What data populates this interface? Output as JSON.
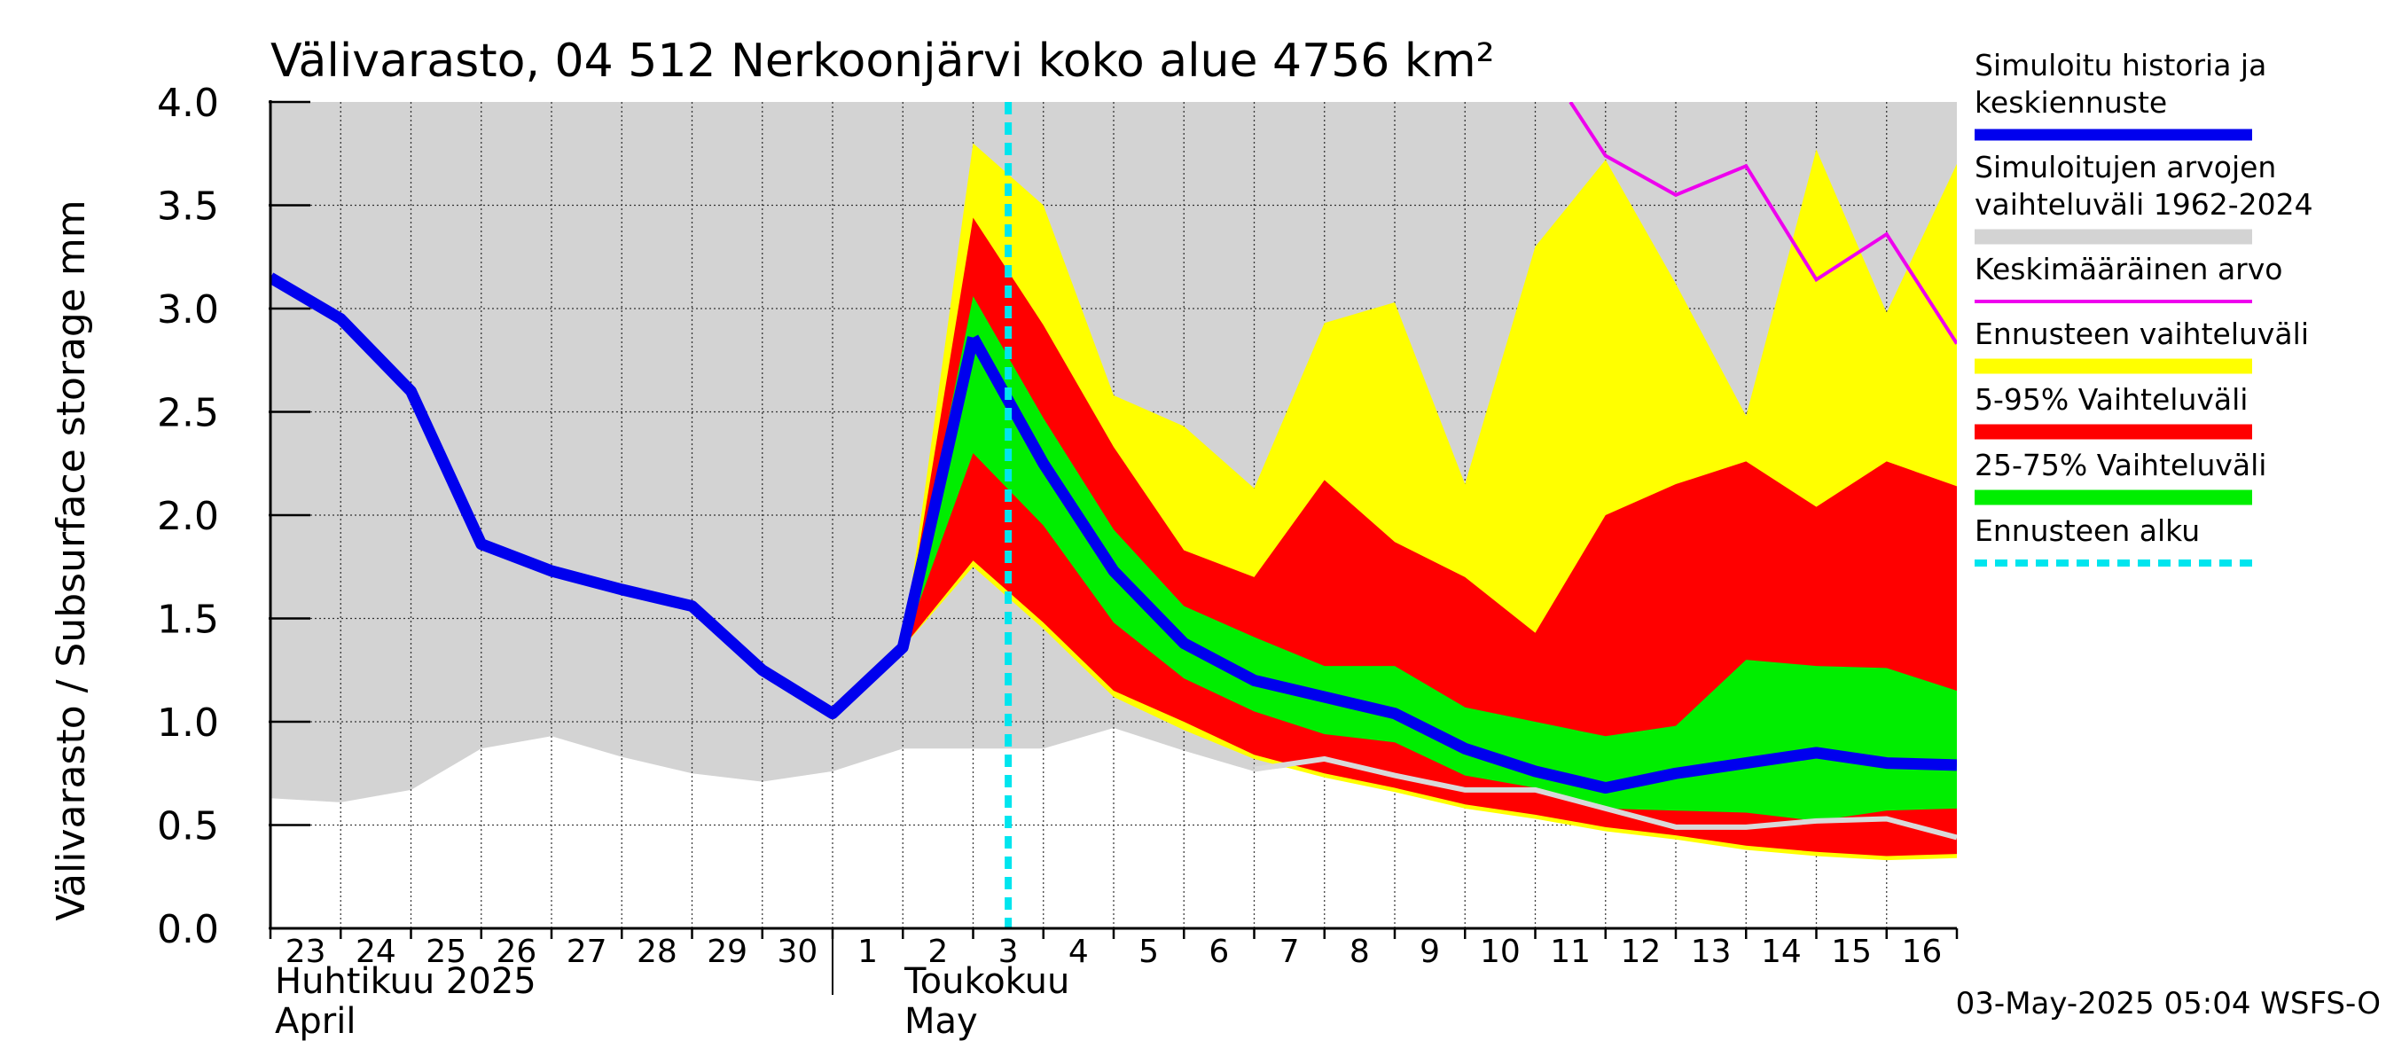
{
  "chart_data": {
    "type": "area",
    "title": "Välivarasto, 04 512 Nerkoonjärvi koko alue 4756 km²",
    "ylabel": "Välivarasto / Subsurface storage  mm",
    "ylim": [
      0,
      4
    ],
    "yticks": [
      "0.0",
      "0.5",
      "1.0",
      "1.5",
      "2.0",
      "2.5",
      "3.0",
      "3.5",
      "4.0"
    ],
    "x_day_labels": [
      "23",
      "24",
      "25",
      "26",
      "27",
      "28",
      "29",
      "30",
      "1",
      "2",
      "3",
      "4",
      "5",
      "6",
      "7",
      "8",
      "9",
      "10",
      "11",
      "12",
      "13",
      "14",
      "15",
      "16"
    ],
    "month_labels": [
      {
        "fi": "Huhtikuu  2025",
        "en": "April"
      },
      {
        "fi": "Toukokuu",
        "en": "May"
      }
    ],
    "forecast_start": "3",
    "timestamp": "03-May-2025 05:04 WSFS-O",
    "legend": [
      {
        "label_lines": [
          "Simuloitu historia ja",
          "keskiennuste"
        ],
        "color": "#0000ee"
      },
      {
        "label_lines": [
          "Simuloitujen arvojen",
          "vaihteluväli 1962-2024"
        ],
        "color": "#d3d3d3"
      },
      {
        "label_lines": [
          "Keskimääräinen arvo"
        ],
        "color": "#ee00ee"
      },
      {
        "label_lines": [
          "Ennusteen vaihteluväli"
        ],
        "color": "#ffff00"
      },
      {
        "label_lines": [
          "5-95% Vaihteluväli"
        ],
        "color": "#ff0000"
      },
      {
        "label_lines": [
          "25-75% Vaihteluväli"
        ],
        "color": "#00ee00"
      },
      {
        "label_lines": [
          "Ennusteen alku"
        ],
        "color": "#00e5ee"
      }
    ],
    "series": {
      "historical_range": {
        "x": [
          0,
          1,
          2,
          3,
          4,
          5,
          6,
          7,
          8,
          9,
          10,
          11,
          12,
          13,
          14,
          15,
          16,
          17,
          18,
          19,
          20,
          21,
          22,
          23,
          24
        ],
        "low": [
          0.63,
          0.61,
          0.67,
          0.87,
          0.93,
          0.83,
          0.75,
          0.71,
          0.76,
          0.87,
          0.87,
          0.87,
          0.97,
          0.86,
          0.76,
          0.8,
          0.72,
          0.64,
          0.64,
          0.55,
          0.49,
          0.49,
          0.52,
          0.53,
          0.44
        ],
        "high": [
          4,
          4,
          4,
          4,
          4,
          4,
          4,
          4,
          4,
          4,
          4,
          4,
          4,
          4,
          4,
          4,
          4,
          4,
          4,
          4,
          4,
          4,
          4,
          4,
          4
        ]
      },
      "simulated_history": {
        "x": [
          0,
          1,
          2,
          3,
          4,
          5,
          6,
          7,
          8,
          9,
          10
        ],
        "y": [
          3.15,
          2.95,
          2.6,
          1.86,
          1.73,
          1.64,
          1.56,
          1.25,
          1.04,
          1.36,
          2.86
        ]
      },
      "mean_value": {
        "x": [
          18.5,
          19,
          20,
          21,
          22,
          23,
          24
        ],
        "y": [
          4.0,
          3.74,
          3.55,
          3.69,
          3.14,
          3.36,
          2.83
        ]
      },
      "forecast_range": {
        "x": [
          9,
          10,
          11,
          12,
          13,
          14,
          15,
          16,
          17,
          18,
          19,
          20,
          21,
          22,
          23,
          24
        ],
        "low": [
          1.36,
          1.75,
          1.45,
          1.12,
          0.96,
          0.82,
          0.73,
          0.66,
          0.58,
          0.53,
          0.47,
          0.43,
          0.38,
          0.35,
          0.33,
          0.34
        ],
        "high": [
          1.36,
          3.8,
          3.5,
          2.58,
          2.43,
          2.13,
          2.93,
          3.03,
          2.15,
          3.3,
          3.72,
          3.12,
          2.48,
          3.77,
          2.98,
          3.7
        ]
      },
      "p5_95": {
        "x": [
          9,
          10,
          11,
          12,
          13,
          14,
          15,
          16,
          17,
          18,
          19,
          20,
          21,
          22,
          23,
          24
        ],
        "low": [
          1.36,
          1.78,
          1.48,
          1.15,
          1.0,
          0.84,
          0.75,
          0.68,
          0.6,
          0.55,
          0.49,
          0.45,
          0.4,
          0.37,
          0.35,
          0.36
        ],
        "high": [
          1.36,
          3.44,
          2.92,
          2.33,
          1.83,
          1.7,
          2.17,
          1.87,
          1.7,
          1.43,
          2.0,
          2.15,
          2.26,
          2.04,
          2.26,
          2.14
        ]
      },
      "p25_75": {
        "x": [
          9,
          10,
          11,
          12,
          13,
          14,
          15,
          16,
          17,
          18,
          19,
          20,
          21,
          22,
          23,
          24
        ],
        "low": [
          1.36,
          2.3,
          1.95,
          1.48,
          1.21,
          1.05,
          0.94,
          0.9,
          0.74,
          0.68,
          0.58,
          0.57,
          0.56,
          0.52,
          0.57,
          0.58
        ],
        "high": [
          1.36,
          3.06,
          2.47,
          1.93,
          1.56,
          1.41,
          1.27,
          1.27,
          1.07,
          1.0,
          0.93,
          0.98,
          1.3,
          1.27,
          1.26,
          1.15
        ]
      },
      "median_forecast": {
        "x": [
          10,
          11,
          12,
          13,
          14,
          15,
          16,
          17,
          18,
          19,
          20,
          21,
          22,
          23,
          24
        ],
        "y": [
          2.86,
          2.25,
          1.73,
          1.38,
          1.2,
          1.12,
          1.04,
          0.87,
          0.76,
          0.68,
          0.75,
          0.8,
          0.85,
          0.8,
          0.79
        ]
      },
      "gray_line": {
        "x": [
          14,
          15,
          16,
          17,
          18,
          19,
          20,
          21,
          22,
          23,
          24
        ],
        "y": [
          0.77,
          0.82,
          0.74,
          0.67,
          0.67,
          0.58,
          0.49,
          0.49,
          0.52,
          0.53,
          0.44
        ]
      }
    }
  }
}
